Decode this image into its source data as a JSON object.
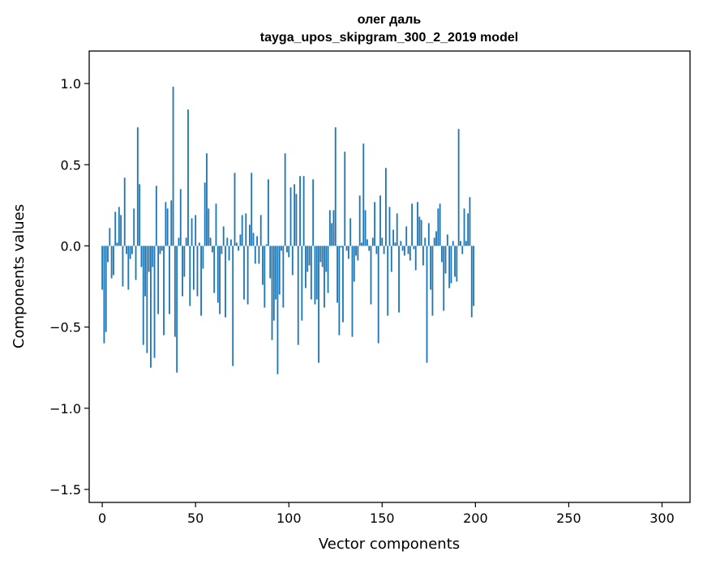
{
  "chart_data": {
    "type": "bar",
    "title": "олег даль",
    "subtitle": "tayga_upos_skipgram_300_2_2019 model",
    "xlabel": "Vector components",
    "ylabel": "Components values",
    "xlim": [
      -7,
      315
    ],
    "ylim": [
      -1.58,
      1.2
    ],
    "xticks": [
      0,
      50,
      100,
      150,
      200,
      250,
      300
    ],
    "xtick_labels": [
      "0",
      "50",
      "100",
      "150",
      "200",
      "250",
      "300"
    ],
    "yticks": [
      1.0,
      0.5,
      0.0,
      -0.5,
      -1.0,
      -1.5
    ],
    "ytick_labels": [
      "1.0",
      "0.5",
      "0.0",
      "−0.5",
      "−1.0",
      "−1.5"
    ],
    "bar_color": "#1f77b4",
    "grid": false,
    "values": [
      -0.27,
      -0.6,
      -0.53,
      -0.1,
      0.11,
      -0.2,
      -0.18,
      0.21,
      0.02,
      0.24,
      0.19,
      -0.25,
      0.42,
      -0.05,
      -0.27,
      -0.08,
      -0.05,
      0.23,
      -0.21,
      0.73,
      0.38,
      -0.13,
      -0.61,
      -0.31,
      -0.66,
      -0.16,
      -0.75,
      -0.13,
      -0.69,
      0.37,
      -0.42,
      -0.05,
      -0.03,
      -0.55,
      0.27,
      0.23,
      -0.42,
      0.28,
      0.98,
      -0.56,
      -0.78,
      0.05,
      0.35,
      -0.31,
      -0.19,
      0.05,
      0.84,
      -0.37,
      0.17,
      -0.27,
      0.19,
      -0.31,
      0.02,
      -0.43,
      -0.14,
      0.39,
      0.57,
      0.23,
      0.05,
      -0.04,
      -0.29,
      0.26,
      -0.35,
      -0.42,
      -0.05,
      0.12,
      -0.44,
      0.05,
      -0.09,
      0.04,
      -0.74,
      0.45,
      0.02,
      -0.03,
      0.07,
      0.19,
      -0.33,
      0.2,
      -0.36,
      0.13,
      0.45,
      0.08,
      -0.11,
      0.06,
      -0.11,
      0.19,
      -0.24,
      -0.38,
      0.01,
      0.41,
      -0.2,
      -0.58,
      -0.46,
      -0.33,
      -0.79,
      -0.3,
      -0.03,
      -0.38,
      0.57,
      -0.04,
      -0.07,
      0.36,
      -0.18,
      0.38,
      0.32,
      -0.61,
      0.43,
      -0.46,
      0.43,
      -0.26,
      -0.16,
      -0.12,
      -0.33,
      0.41,
      -0.36,
      -0.33,
      -0.72,
      -0.1,
      -0.13,
      -0.38,
      -0.16,
      -0.29,
      0.22,
      0.14,
      0.22,
      0.73,
      -0.35,
      -0.55,
      -0.01,
      -0.47,
      0.58,
      -0.03,
      -0.08,
      0.17,
      -0.56,
      -0.22,
      -0.06,
      -0.09,
      0.31,
      0.02,
      0.63,
      0.22,
      0.04,
      -0.03,
      -0.36,
      0.05,
      0.27,
      -0.05,
      -0.6,
      0.31,
      0.05,
      -0.05,
      0.48,
      -0.43,
      0.24,
      -0.16,
      0.1,
      0.02,
      0.2,
      -0.41,
      0.03,
      -0.03,
      -0.06,
      0.12,
      -0.05,
      -0.09,
      0.26,
      -0.02,
      -0.15,
      0.27,
      0.18,
      0.16,
      -0.12,
      0.05,
      -0.72,
      0.14,
      -0.27,
      -0.43,
      0.05,
      0.09,
      0.23,
      0.26,
      -0.1,
      -0.4,
      -0.17,
      0.07,
      -0.26,
      -0.23,
      0.03,
      -0.19,
      -0.22,
      0.72,
      0.03,
      -0.05,
      0.23,
      0.03,
      0.2,
      0.3,
      -0.44,
      -0.37
    ]
  }
}
